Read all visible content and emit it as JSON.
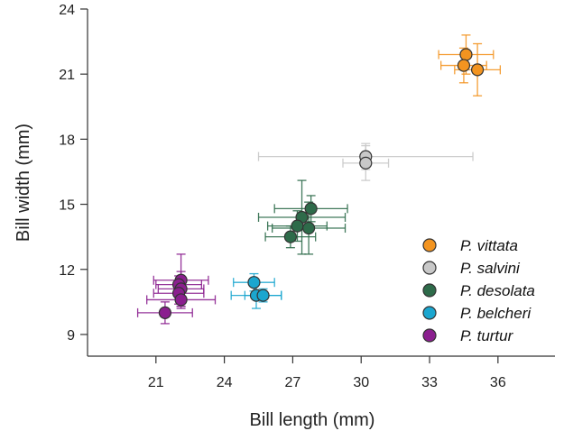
{
  "chart_data": {
    "type": "scatter",
    "title": "",
    "xlabel": "Bill length (mm)",
    "ylabel": "Bill width (mm)",
    "xlim": [
      18,
      38.5
    ],
    "ylim": [
      8,
      24
    ],
    "xticks": [
      21,
      24,
      27,
      30,
      33,
      36
    ],
    "yticks": [
      9,
      12,
      15,
      18,
      21,
      24
    ],
    "xtick_labels": [
      "21",
      "24",
      "27",
      "30",
      "33",
      "36"
    ],
    "ytick_labels": [
      "9",
      "12",
      "15",
      "18",
      "21",
      "24"
    ],
    "grid": false,
    "legend_position": "right",
    "series": [
      {
        "name": "P. vittata",
        "color": "#f39420",
        "points": [
          {
            "x": 34.6,
            "y": 21.9,
            "xerr": 1.2,
            "yerr": 0.9
          },
          {
            "x": 34.5,
            "y": 21.4,
            "xerr": 1.0,
            "yerr": 0.8
          },
          {
            "x": 35.1,
            "y": 21.2,
            "xerr": 1.0,
            "yerr": 1.2
          }
        ]
      },
      {
        "name": "P. salvini",
        "color": "#c8c8c8",
        "points": [
          {
            "x": 30.2,
            "y": 17.2,
            "xerr": 4.7,
            "yerr": 0.6
          },
          {
            "x": 30.2,
            "y": 16.9,
            "xerr": 1.0,
            "yerr": 0.8
          }
        ]
      },
      {
        "name": "P. desolata",
        "color": "#2e6b4a",
        "points": [
          {
            "x": 27.4,
            "y": 14.4,
            "xerr": 1.9,
            "yerr": 1.7
          },
          {
            "x": 27.8,
            "y": 14.8,
            "xerr": 1.6,
            "yerr": 0.6
          },
          {
            "x": 27.2,
            "y": 14.0,
            "xerr": 1.3,
            "yerr": 0.7
          },
          {
            "x": 27.7,
            "y": 13.9,
            "xerr": 1.6,
            "yerr": 1.2
          },
          {
            "x": 26.9,
            "y": 13.5,
            "xerr": 1.1,
            "yerr": 0.5
          }
        ]
      },
      {
        "name": "P. belcheri",
        "color": "#1ba6cf",
        "points": [
          {
            "x": 25.3,
            "y": 11.4,
            "xerr": 0.9,
            "yerr": 0.4
          },
          {
            "x": 25.4,
            "y": 10.8,
            "xerr": 1.1,
            "yerr": 0.6
          },
          {
            "x": 25.7,
            "y": 10.8,
            "xerr": 0.8,
            "yerr": 0.3
          }
        ]
      },
      {
        "name": "P. turtur",
        "color": "#8b1f8f",
        "points": [
          {
            "x": 22.1,
            "y": 11.5,
            "xerr": 1.2,
            "yerr": 1.2
          },
          {
            "x": 22.0,
            "y": 11.3,
            "xerr": 1.0,
            "yerr": 0.4
          },
          {
            "x": 22.1,
            "y": 11.1,
            "xerr": 1.0,
            "yerr": 0.8
          },
          {
            "x": 22.0,
            "y": 10.9,
            "xerr": 1.1,
            "yerr": 0.5
          },
          {
            "x": 22.1,
            "y": 10.6,
            "xerr": 1.5,
            "yerr": 0.4
          },
          {
            "x": 21.4,
            "y": 10.0,
            "xerr": 1.2,
            "yerr": 0.5
          }
        ]
      }
    ]
  }
}
